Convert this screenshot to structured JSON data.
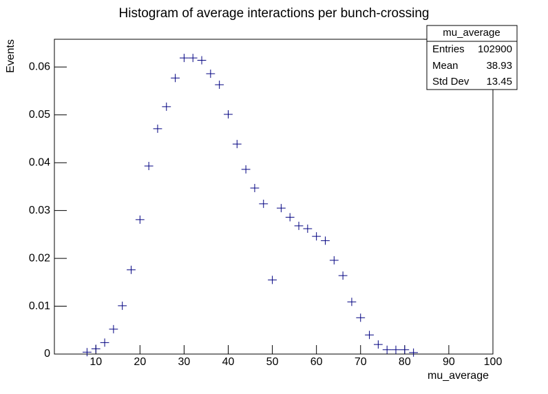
{
  "chart_data": {
    "type": "histogram",
    "title": "Histogram of average interactions per bunch-crossing",
    "x_label": "mu_average",
    "y_label": "Events",
    "color": "#000080",
    "bins": [
      7,
      9,
      11,
      13,
      15,
      17,
      19,
      21,
      23,
      25,
      27,
      29,
      31,
      33,
      35,
      37,
      39,
      41,
      43,
      45,
      47,
      49,
      51,
      53,
      55,
      57,
      59,
      61,
      63,
      65,
      67,
      69,
      71,
      73,
      75,
      77,
      79,
      81,
      83
    ],
    "values": [
      0.0004,
      0.0011,
      0.0024,
      0.0052,
      0.0101,
      0.0176,
      0.0281,
      0.0393,
      0.0471,
      0.0517,
      0.0577,
      0.0619,
      0.0619,
      0.0614,
      0.0586,
      0.0563,
      0.0501,
      0.0439,
      0.0386,
      0.0347,
      0.0314,
      0.0155,
      0.0305,
      0.0286,
      0.0268,
      0.0262,
      0.0246,
      0.0237,
      0.0196,
      0.0164,
      0.0109,
      0.0076,
      0.004,
      0.002,
      0.0009,
      0.0009,
      0.0009,
      0.0003
    ],
    "xlim": [
      0.6,
      100
    ],
    "xticks": [
      10,
      20,
      30,
      40,
      50,
      60,
      70,
      80,
      90,
      100
    ],
    "ylim": [
      0,
      0.0658
    ],
    "yticks": [
      0,
      0.01,
      0.02,
      0.03,
      0.04,
      0.05,
      0.06
    ],
    "stats": {
      "title": "mu_average",
      "rows": [
        {
          "label": "Entries",
          "value": 102900
        },
        {
          "label": "Mean",
          "value": 38.93
        },
        {
          "label": "Std Dev",
          "value": 13.45
        }
      ]
    }
  }
}
